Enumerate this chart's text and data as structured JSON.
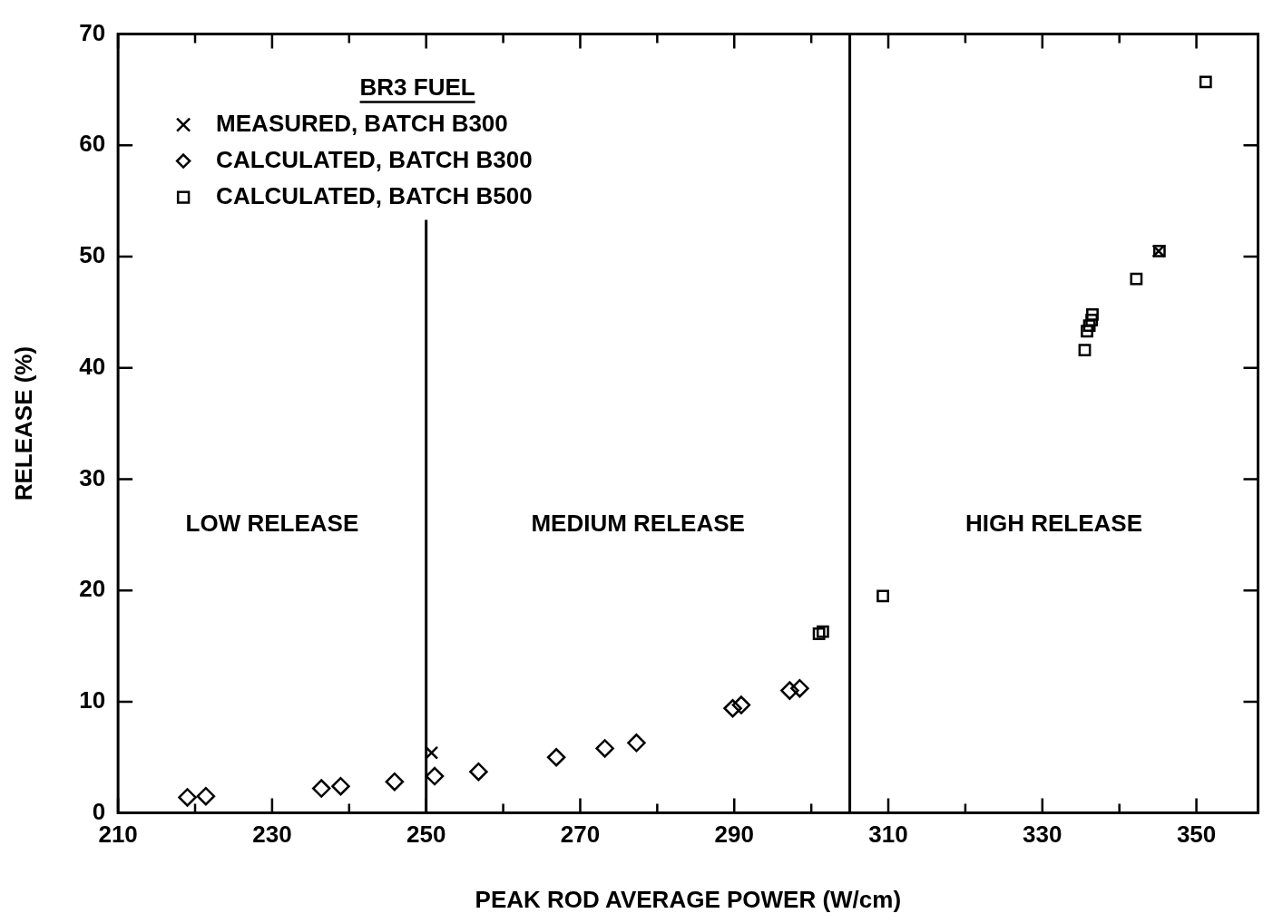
{
  "chart_data": {
    "type": "scatter",
    "xlabel": "PEAK ROD AVERAGE POWER (W/cm)",
    "ylabel": "RELEASE (%)",
    "legend_title": "BR3 FUEL",
    "legend": "top left",
    "xlim": [
      210,
      358
    ],
    "ylim": [
      0,
      70
    ],
    "xticks": [
      210,
      {
        "value": 220,
        "label": null
      },
      230,
      {
        "value": 240,
        "label": null
      },
      250,
      {
        "value": 260,
        "label": null
      },
      270,
      {
        "value": 280,
        "label": null
      },
      290,
      {
        "value": 300,
        "label": null
      },
      310,
      {
        "value": 320,
        "label": null
      },
      330,
      {
        "value": 340,
        "label": null
      },
      350
    ],
    "yticks": [
      0,
      10,
      20,
      30,
      40,
      50,
      60,
      70
    ],
    "series": [
      {
        "name": "MEASURED, BATCH B300",
        "color": "#000000",
        "marker": "cross",
        "x": [
          250.7,
          345.1
        ],
        "values": [
          5.4,
          50.5
        ]
      },
      {
        "name": "CALCULATED, BATCH B300",
        "color": "#000000",
        "marker": "diamond",
        "x": [
          219.0,
          221.4,
          236.4,
          238.9,
          245.9,
          251.1,
          256.8,
          266.9,
          273.2,
          277.3,
          289.8,
          290.9,
          297.2,
          298.5
        ],
        "values": [
          1.4,
          1.5,
          2.2,
          2.4,
          2.8,
          3.3,
          3.7,
          5.0,
          5.8,
          6.3,
          9.4,
          9.7,
          11.0,
          11.2
        ]
      },
      {
        "name": "CALCULATED, BATCH B500",
        "color": "#000000",
        "marker": "square",
        "x": [
          301.0,
          301.5,
          309.3,
          335.5,
          335.8,
          336.1,
          336.4,
          336.5,
          342.2,
          345.2,
          351.2
        ],
        "values": [
          16.1,
          16.3,
          19.5,
          41.6,
          43.3,
          43.8,
          44.3,
          44.8,
          48.0,
          50.5,
          65.7
        ]
      }
    ],
    "ref_lines": [
      {
        "axis": "x",
        "value": 250,
        "color": "#000000"
      },
      {
        "axis": "x",
        "value": 305,
        "color": "#000000"
      }
    ],
    "annotations": [
      "LOW RELEASE",
      "MEDIUM RELEASE",
      "HIGH RELEASE"
    ]
  }
}
